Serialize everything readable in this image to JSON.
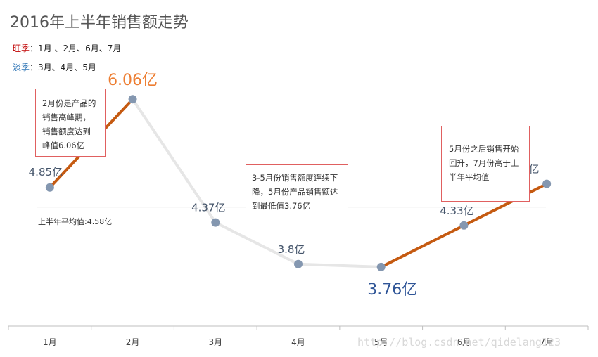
{
  "title": "2016年上半年销售额走势",
  "legend": {
    "peak_label": "旺季",
    "peak_sep": "：",
    "peak_months": "1月 、2月、6月、7月",
    "low_label": "淡季",
    "low_sep": "：",
    "low_months": "3月、4月、5月"
  },
  "notes": {
    "peak_note": "2月份是产品的销售高峰期，销售额度达到峰值6.06亿",
    "low_note": "3-5月份销售额度连续下降，5月份产品销售额达到最低值3.76亿",
    "recover_note": "5月份之后销售开始回升，7月份高于上半年平均值"
  },
  "average_label": "上半年平均值:4.58亿",
  "watermark": "http://blog.csdn.net/qidelang123",
  "chart_data": {
    "type": "line",
    "title": "2016年上半年销售额走势",
    "categories": [
      "1月",
      "2月",
      "3月",
      "4月",
      "5月",
      "6月",
      "7月"
    ],
    "series": [
      {
        "values": [
          4.85,
          6.06,
          4.37,
          3.8,
          3.76,
          4.33,
          4.9
        ]
      }
    ],
    "value_labels": [
      "4.85亿",
      "6.06亿",
      "4.37亿",
      "3.8亿",
      "3.76亿",
      "4.33亿",
      "4.9亿"
    ],
    "unit": "亿",
    "average": 4.58,
    "ylim": [
      2.95,
      6.65
    ],
    "grid": false,
    "peak_months": [
      "1月",
      "2月",
      "6月",
      "7月"
    ],
    "low_months": [
      "3月",
      "4月",
      "5月"
    ],
    "colors": {
      "peak_line": "#c55a11",
      "low_line": "#e6e6e6",
      "marker": "#8497b0",
      "label_default": "#44546a",
      "label_max": "#ed7d31",
      "label_min": "#2f5597",
      "axis": "#bfbfbf",
      "average_line": "#eeeeee"
    }
  }
}
